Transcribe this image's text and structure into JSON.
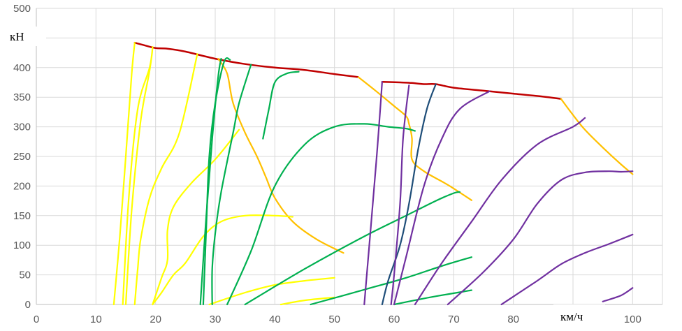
{
  "chart_data": {
    "type": "line",
    "xlabel": "км/ч",
    "ylabel": "кН",
    "xlim": [
      0,
      105
    ],
    "ylim": [
      0,
      500
    ],
    "x_ticks": [
      "0",
      "10",
      "20",
      "30",
      "40",
      "50",
      "60",
      "70",
      "80",
      "90",
      "100"
    ],
    "y_ticks": [
      "0",
      "50",
      "100",
      "150",
      "200",
      "250",
      "300",
      "350",
      "400",
      "450",
      "500"
    ],
    "grid": true,
    "legend": "none",
    "colors": {
      "red": "#C00000",
      "orange": "#FFC000",
      "yellow": "#FFFF00",
      "green": "#00B050",
      "blue": "#1F4E79",
      "purple": "#7030A0",
      "grid": "#D9D9D9",
      "axis": "#BFBFBF"
    },
    "series": [
      {
        "color": "red",
        "points": [
          [
            16.5,
            442
          ],
          [
            18,
            438
          ],
          [
            20,
            433
          ],
          [
            22,
            432
          ],
          [
            25,
            427
          ],
          [
            30,
            415
          ],
          [
            35,
            406
          ],
          [
            40,
            400
          ],
          [
            45,
            396
          ],
          [
            50,
            389
          ],
          [
            54,
            384
          ]
        ]
      },
      {
        "color": "red",
        "points": [
          [
            58,
            376
          ],
          [
            61,
            375
          ],
          [
            63,
            374
          ],
          [
            65,
            372
          ],
          [
            67,
            372
          ],
          [
            70,
            366
          ],
          [
            75,
            361
          ],
          [
            80,
            356
          ],
          [
            85,
            351
          ],
          [
            88,
            347
          ]
        ]
      },
      {
        "color": "orange",
        "points": [
          [
            30.5,
            415
          ],
          [
            32,
            390
          ],
          [
            33,
            340
          ],
          [
            35,
            290
          ],
          [
            37,
            250
          ],
          [
            38.5,
            215
          ],
          [
            40,
            180
          ],
          [
            43,
            140
          ],
          [
            47,
            110
          ],
          [
            51.5,
            87
          ]
        ]
      },
      {
        "color": "orange",
        "points": [
          [
            54,
            384
          ],
          [
            57,
            360
          ],
          [
            60,
            335
          ],
          [
            62,
            318
          ],
          [
            62.5,
            305
          ],
          [
            63,
            280
          ],
          [
            63,
            245
          ],
          [
            65,
            225
          ],
          [
            69,
            202
          ],
          [
            73,
            176
          ]
        ]
      },
      {
        "color": "orange",
        "points": [
          [
            88,
            347
          ],
          [
            90,
            320
          ],
          [
            92,
            295
          ],
          [
            95,
            265
          ],
          [
            98,
            237
          ],
          [
            100,
            220
          ]
        ]
      },
      {
        "color": "yellow",
        "points": [
          [
            13,
            0
          ],
          [
            14,
            115
          ],
          [
            15,
            250
          ],
          [
            16,
            390
          ],
          [
            16.5,
            442
          ]
        ]
      },
      {
        "color": "yellow",
        "points": [
          [
            14.5,
            0
          ],
          [
            15.5,
            180
          ],
          [
            17,
            330
          ],
          [
            19,
            400
          ],
          [
            19.5,
            435
          ],
          [
            19,
            395
          ],
          [
            17.5,
            310
          ],
          [
            16,
            160
          ],
          [
            15,
            0
          ]
        ]
      },
      {
        "color": "yellow",
        "points": [
          [
            16.5,
            0
          ],
          [
            17,
            60
          ],
          [
            17.5,
            110
          ],
          [
            19,
            180
          ],
          [
            21,
            230
          ],
          [
            24,
            290
          ],
          [
            27,
            423
          ]
        ]
      },
      {
        "color": "yellow",
        "points": [
          [
            19.5,
            0
          ],
          [
            21,
            45
          ],
          [
            22,
            75
          ],
          [
            22,
            125
          ],
          [
            23,
            165
          ],
          [
            26,
            205
          ],
          [
            30,
            245
          ],
          [
            34,
            295
          ]
        ]
      },
      {
        "color": "yellow",
        "points": [
          [
            19.5,
            0
          ],
          [
            21,
            20
          ],
          [
            23,
            50
          ],
          [
            25,
            70
          ],
          [
            28,
            115
          ],
          [
            31,
            140
          ],
          [
            35,
            150
          ],
          [
            40,
            150
          ],
          [
            43,
            148
          ]
        ]
      },
      {
        "color": "yellow",
        "points": [
          [
            29,
            0
          ],
          [
            35,
            20
          ],
          [
            40,
            33
          ],
          [
            45,
            40
          ],
          [
            50,
            45
          ]
        ]
      },
      {
        "color": "yellow",
        "points": [
          [
            41,
            0
          ],
          [
            45,
            7
          ],
          [
            50,
            12
          ]
        ]
      },
      {
        "color": "green",
        "points": [
          [
            27.5,
            0
          ],
          [
            28.5,
            150
          ],
          [
            29.5,
            280
          ],
          [
            30.5,
            385
          ],
          [
            31,
            415
          ]
        ]
      },
      {
        "color": "green",
        "points": [
          [
            28,
            0
          ],
          [
            28.5,
            130
          ],
          [
            29,
            250
          ],
          [
            30,
            340
          ],
          [
            31.5,
            410
          ],
          [
            32.5,
            413
          ]
        ]
      },
      {
        "color": "green",
        "points": [
          [
            29.5,
            0
          ],
          [
            29.5,
            60
          ],
          [
            30,
            120
          ],
          [
            31,
            190
          ],
          [
            33,
            290
          ],
          [
            34,
            340
          ],
          [
            36,
            405
          ]
        ]
      },
      {
        "color": "green",
        "points": [
          [
            32,
            0
          ],
          [
            36,
            90
          ],
          [
            40,
            200
          ],
          [
            45,
            270
          ],
          [
            50,
            300
          ],
          [
            55,
            305
          ],
          [
            59,
            300
          ],
          [
            62,
            297
          ],
          [
            63.5,
            293
          ]
        ]
      },
      {
        "color": "green",
        "points": [
          [
            35,
            0
          ],
          [
            45,
            60
          ],
          [
            55,
            115
          ],
          [
            62,
            150
          ],
          [
            67,
            175
          ],
          [
            70,
            188
          ],
          [
            71,
            190
          ]
        ]
      },
      {
        "color": "green",
        "points": [
          [
            46,
            0
          ],
          [
            55,
            25
          ],
          [
            62,
            45
          ],
          [
            68,
            65
          ],
          [
            73,
            80
          ]
        ]
      },
      {
        "color": "green",
        "points": [
          [
            38,
            280
          ],
          [
            39,
            330
          ],
          [
            40,
            375
          ],
          [
            42,
            390
          ],
          [
            44,
            393
          ]
        ]
      },
      {
        "color": "green",
        "points": [
          [
            60,
            0
          ],
          [
            66,
            12
          ],
          [
            73,
            24
          ]
        ]
      },
      {
        "color": "blue",
        "points": [
          [
            58,
            0
          ],
          [
            59,
            40
          ],
          [
            61,
            100
          ],
          [
            62.5,
            170
          ],
          [
            64,
            260
          ],
          [
            65.5,
            330
          ],
          [
            67,
            372
          ]
        ]
      },
      {
        "color": "purple",
        "points": [
          [
            55,
            0
          ],
          [
            57,
            240
          ],
          [
            58,
            376
          ]
        ]
      },
      {
        "color": "purple",
        "points": [
          [
            59.5,
            0
          ],
          [
            60,
            50
          ],
          [
            61,
            170
          ],
          [
            61.5,
            280
          ],
          [
            62.5,
            370
          ]
        ]
      },
      {
        "color": "purple",
        "points": [
          [
            60,
            0
          ],
          [
            62,
            80
          ],
          [
            65,
            200
          ],
          [
            68,
            280
          ],
          [
            71,
            330
          ],
          [
            76,
            360
          ]
        ]
      },
      {
        "color": "purple",
        "points": [
          [
            63.5,
            0
          ],
          [
            68,
            70
          ],
          [
            73,
            140
          ],
          [
            78,
            210
          ],
          [
            84,
            270
          ],
          [
            90,
            300
          ],
          [
            92,
            315
          ]
        ]
      },
      {
        "color": "purple",
        "points": [
          [
            69,
            0
          ],
          [
            75,
            55
          ],
          [
            80,
            110
          ],
          [
            84,
            170
          ],
          [
            88,
            210
          ],
          [
            92,
            223
          ],
          [
            96,
            225
          ],
          [
            98,
            224
          ],
          [
            100,
            225
          ]
        ]
      },
      {
        "color": "purple",
        "points": [
          [
            78,
            0
          ],
          [
            84,
            40
          ],
          [
            88,
            68
          ],
          [
            92,
            87
          ],
          [
            96,
            102
          ],
          [
            100,
            118
          ]
        ]
      },
      {
        "color": "purple",
        "points": [
          [
            95,
            5
          ],
          [
            98,
            15
          ],
          [
            100,
            28
          ]
        ]
      }
    ]
  }
}
